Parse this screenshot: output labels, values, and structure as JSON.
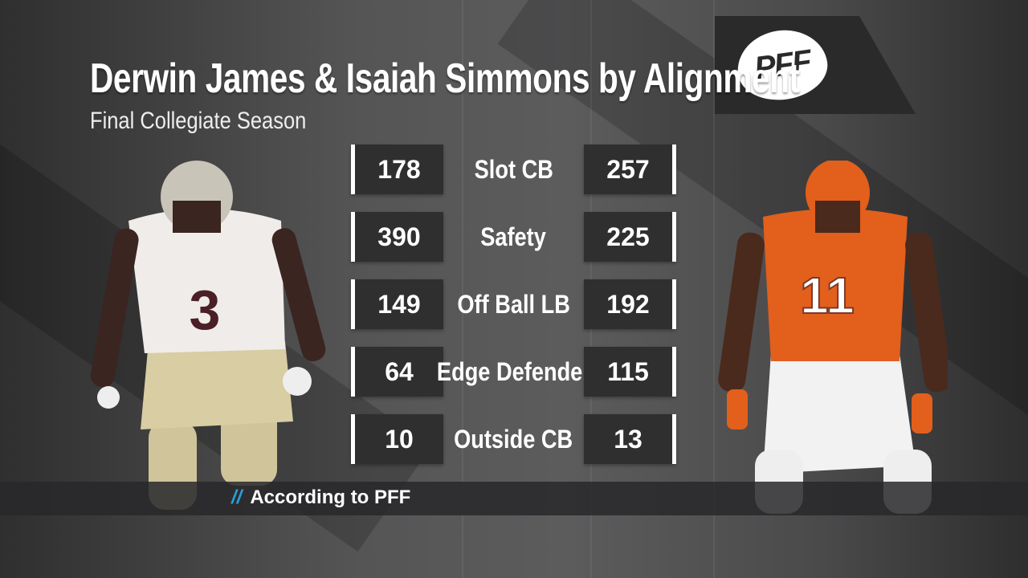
{
  "title": "Derwin James & Isaiah Simmons by Alignment",
  "subtitle": "Final Collegiate Season",
  "logo_text": "PFF",
  "rows": [
    {
      "left": "178",
      "label": "Slot CB",
      "right": "257"
    },
    {
      "left": "390",
      "label": "Safety",
      "right": "225"
    },
    {
      "left": "149",
      "label": "Off Ball LB",
      "right": "192"
    },
    {
      "left": "64",
      "label": "Edge Defender",
      "right": "115"
    },
    {
      "left": "10",
      "label": "Outside CB",
      "right": "13"
    }
  ],
  "source": {
    "prefix": "//",
    "text": "According to PFF"
  },
  "players": {
    "left_jersey": "3",
    "right_jersey": "11"
  },
  "colors": {
    "accent": "#2a9fd8",
    "fsu_garnet": "#782f40",
    "clemson_orange": "#e35f1c"
  }
}
